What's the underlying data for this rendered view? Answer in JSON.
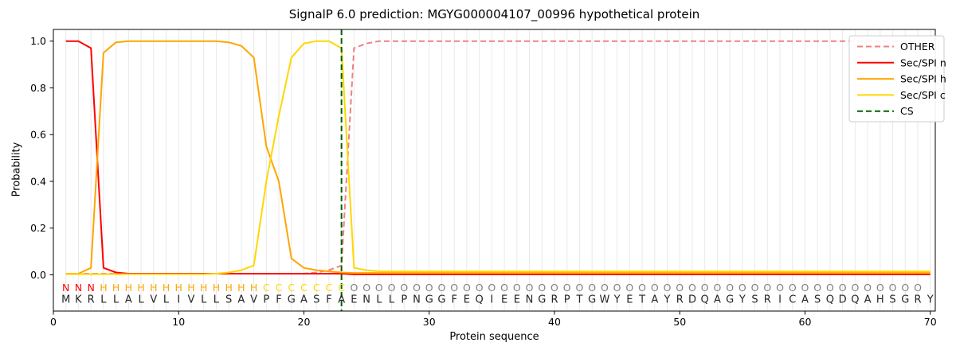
{
  "chart_data": {
    "type": "line",
    "title": "SignalP 6.0 prediction: MGYG000004107_00996 hypothetical protein",
    "xlabel": "Protein sequence",
    "ylabel": "Probability",
    "xlim": [
      0,
      70.4
    ],
    "ylim": [
      -0.155,
      1.05
    ],
    "x_ticks": [
      0,
      10,
      20,
      30,
      40,
      50,
      60,
      70
    ],
    "y_ticks": [
      0.0,
      0.2,
      0.4,
      0.6,
      0.8,
      1.0
    ],
    "grid": {
      "vertical_line_per_residue": true,
      "color": "#e9e9e9",
      "horizontal": false
    },
    "legend_position": "upper right",
    "x_positions": "residue index 1-70",
    "series": [
      {
        "name": "OTHER",
        "color": "#f08080",
        "dashed": true,
        "values": [
          0.005,
          0.005,
          0.005,
          0.005,
          0.005,
          0.005,
          0.005,
          0.005,
          0.005,
          0.005,
          0.005,
          0.005,
          0.005,
          0.005,
          0.005,
          0.005,
          0.005,
          0.005,
          0.005,
          0.005,
          0.01,
          0.02,
          0.04,
          0.97,
          0.99,
          1.0,
          1.0,
          1.0,
          1.0,
          1.0,
          1.0,
          1.0,
          1.0,
          1.0,
          1.0,
          1.0,
          1.0,
          1.0,
          1.0,
          1.0,
          1.0,
          1.0,
          1.0,
          1.0,
          1.0,
          1.0,
          1.0,
          1.0,
          1.0,
          1.0,
          1.0,
          1.0,
          1.0,
          1.0,
          1.0,
          1.0,
          1.0,
          1.0,
          1.0,
          1.0,
          1.0,
          1.0,
          1.0,
          1.0,
          1.0,
          1.0,
          1.0,
          1.0,
          1.0,
          1.0
        ]
      },
      {
        "name": "Sec/SPI n",
        "color": "#ff0000",
        "dashed": false,
        "values": [
          1.0,
          1.0,
          0.97,
          0.03,
          0.01,
          0.005,
          0.005,
          0.005,
          0.005,
          0.005,
          0.005,
          0.005,
          0.005,
          0.005,
          0.005,
          0.005,
          0.005,
          0.005,
          0.005,
          0.005,
          0.005,
          0.005,
          0.005,
          0.002,
          0.002,
          0.002,
          0.002,
          0.002,
          0.002,
          0.002,
          0.002,
          0.002,
          0.002,
          0.002,
          0.002,
          0.002,
          0.002,
          0.002,
          0.002,
          0.002,
          0.002,
          0.002,
          0.002,
          0.002,
          0.002,
          0.002,
          0.002,
          0.002,
          0.002,
          0.002,
          0.002,
          0.002,
          0.002,
          0.002,
          0.002,
          0.002,
          0.002,
          0.002,
          0.002,
          0.002,
          0.002,
          0.002,
          0.002,
          0.002,
          0.002,
          0.002,
          0.002,
          0.002,
          0.002,
          0.002
        ]
      },
      {
        "name": "Sec/SPI h",
        "color": "#ffa500",
        "dashed": false,
        "values": [
          0.005,
          0.005,
          0.03,
          0.95,
          0.995,
          1.0,
          1.0,
          1.0,
          1.0,
          1.0,
          1.0,
          1.0,
          1.0,
          0.995,
          0.98,
          0.93,
          0.55,
          0.4,
          0.07,
          0.03,
          0.02,
          0.015,
          0.01,
          0.008,
          0.008,
          0.008,
          0.008,
          0.008,
          0.008,
          0.008,
          0.008,
          0.008,
          0.008,
          0.008,
          0.008,
          0.008,
          0.008,
          0.008,
          0.008,
          0.008,
          0.008,
          0.008,
          0.008,
          0.008,
          0.008,
          0.008,
          0.008,
          0.008,
          0.008,
          0.008,
          0.008,
          0.008,
          0.008,
          0.008,
          0.008,
          0.008,
          0.008,
          0.008,
          0.008,
          0.008,
          0.008,
          0.008,
          0.008,
          0.008,
          0.008,
          0.008,
          0.008,
          0.008,
          0.008,
          0.008
        ]
      },
      {
        "name": "Sec/SPI c",
        "color": "#ffd700",
        "dashed": false,
        "values": [
          0.003,
          0.003,
          0.003,
          0.003,
          0.003,
          0.003,
          0.003,
          0.003,
          0.003,
          0.003,
          0.003,
          0.003,
          0.005,
          0.01,
          0.02,
          0.04,
          0.4,
          0.68,
          0.93,
          0.99,
          1.0,
          1.0,
          0.97,
          0.03,
          0.02,
          0.015,
          0.015,
          0.015,
          0.015,
          0.015,
          0.015,
          0.015,
          0.015,
          0.015,
          0.015,
          0.015,
          0.015,
          0.015,
          0.015,
          0.015,
          0.015,
          0.015,
          0.015,
          0.015,
          0.015,
          0.015,
          0.015,
          0.015,
          0.015,
          0.015,
          0.015,
          0.015,
          0.015,
          0.015,
          0.015,
          0.015,
          0.015,
          0.015,
          0.015,
          0.015,
          0.015,
          0.015,
          0.015,
          0.015,
          0.015,
          0.015,
          0.015,
          0.015,
          0.015,
          0.015
        ]
      },
      {
        "name": "CS",
        "color": "#006400",
        "dashed": true,
        "type": "vline",
        "x": 23
      }
    ],
    "sequence_annotation": {
      "region_labels": "NNNHHHHHHHHHHHHHCCCCCCCOOOOOOOOOOOOOOOOOOOOOOOOOOOOOOOOOOOOOOOOOOOOOO",
      "region_colors": {
        "N": "#ff0000",
        "H": "#ffa500",
        "C": "#ffd700",
        "O": "#7f7f7f"
      },
      "sequence": "MKRLLALVLIVLLSAVPFGASFAENLLPNGGFEQIEENGRPTGWYETAYRDQAGYSRICASQDQAHSGRY",
      "sequence_color": "#262626"
    }
  }
}
